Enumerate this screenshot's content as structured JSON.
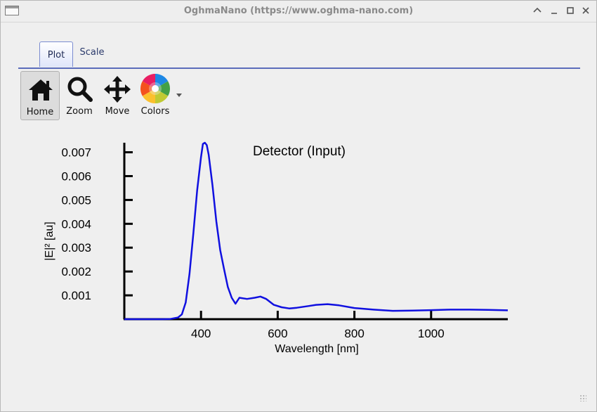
{
  "window": {
    "title": "OghmaNano (https://www.oghma-nano.com)"
  },
  "tabs": [
    {
      "label": "Plot"
    },
    {
      "label": "Scale"
    }
  ],
  "toolbar": {
    "home_label": "Home",
    "zoom_label": "Zoom",
    "move_label": "Move",
    "colors_label": "Colors"
  },
  "chart_data": {
    "type": "line",
    "title": "Detector (Input)",
    "xlabel": "Wavelength [nm]",
    "ylabel": "|E|² [au]",
    "xlim": [
      200,
      1200
    ],
    "ylim": [
      0,
      0.0074
    ],
    "x_ticks": [
      400,
      600,
      800,
      1000
    ],
    "y_ticks": [
      0.001,
      0.002,
      0.003,
      0.004,
      0.005,
      0.006,
      0.007
    ],
    "y_tick_labels": [
      "0.001",
      "0.002",
      "0.003",
      "0.004",
      "0.005",
      "0.006",
      "0.007"
    ],
    "x_tick_labels": [
      "400",
      "600",
      "800",
      "1000"
    ],
    "grid": false,
    "series": [
      {
        "color": "#1010e0",
        "x": [
          200,
          300,
          320,
          340,
          350,
          360,
          370,
          380,
          390,
          400,
          405,
          410,
          415,
          420,
          430,
          440,
          450,
          460,
          470,
          480,
          490,
          500,
          520,
          540,
          555,
          570,
          590,
          610,
          630,
          650,
          680,
          700,
          730,
          760,
          800,
          850,
          900,
          950,
          1000,
          1050,
          1100,
          1150,
          1200
        ],
        "y": [
          0.0,
          0.0,
          1e-05,
          7e-05,
          0.0002,
          0.0007,
          0.0019,
          0.0036,
          0.0054,
          0.0068,
          0.00735,
          0.0074,
          0.0073,
          0.0069,
          0.0056,
          0.0041,
          0.0029,
          0.0021,
          0.00135,
          0.0009,
          0.00065,
          0.0009,
          0.00085,
          0.0009,
          0.00095,
          0.00085,
          0.0006,
          0.0005,
          0.00045,
          0.00048,
          0.00055,
          0.0006,
          0.00063,
          0.00058,
          0.00047,
          0.0004,
          0.00035,
          0.00036,
          0.00038,
          0.0004,
          0.0004,
          0.00039,
          0.00037
        ]
      }
    ]
  }
}
